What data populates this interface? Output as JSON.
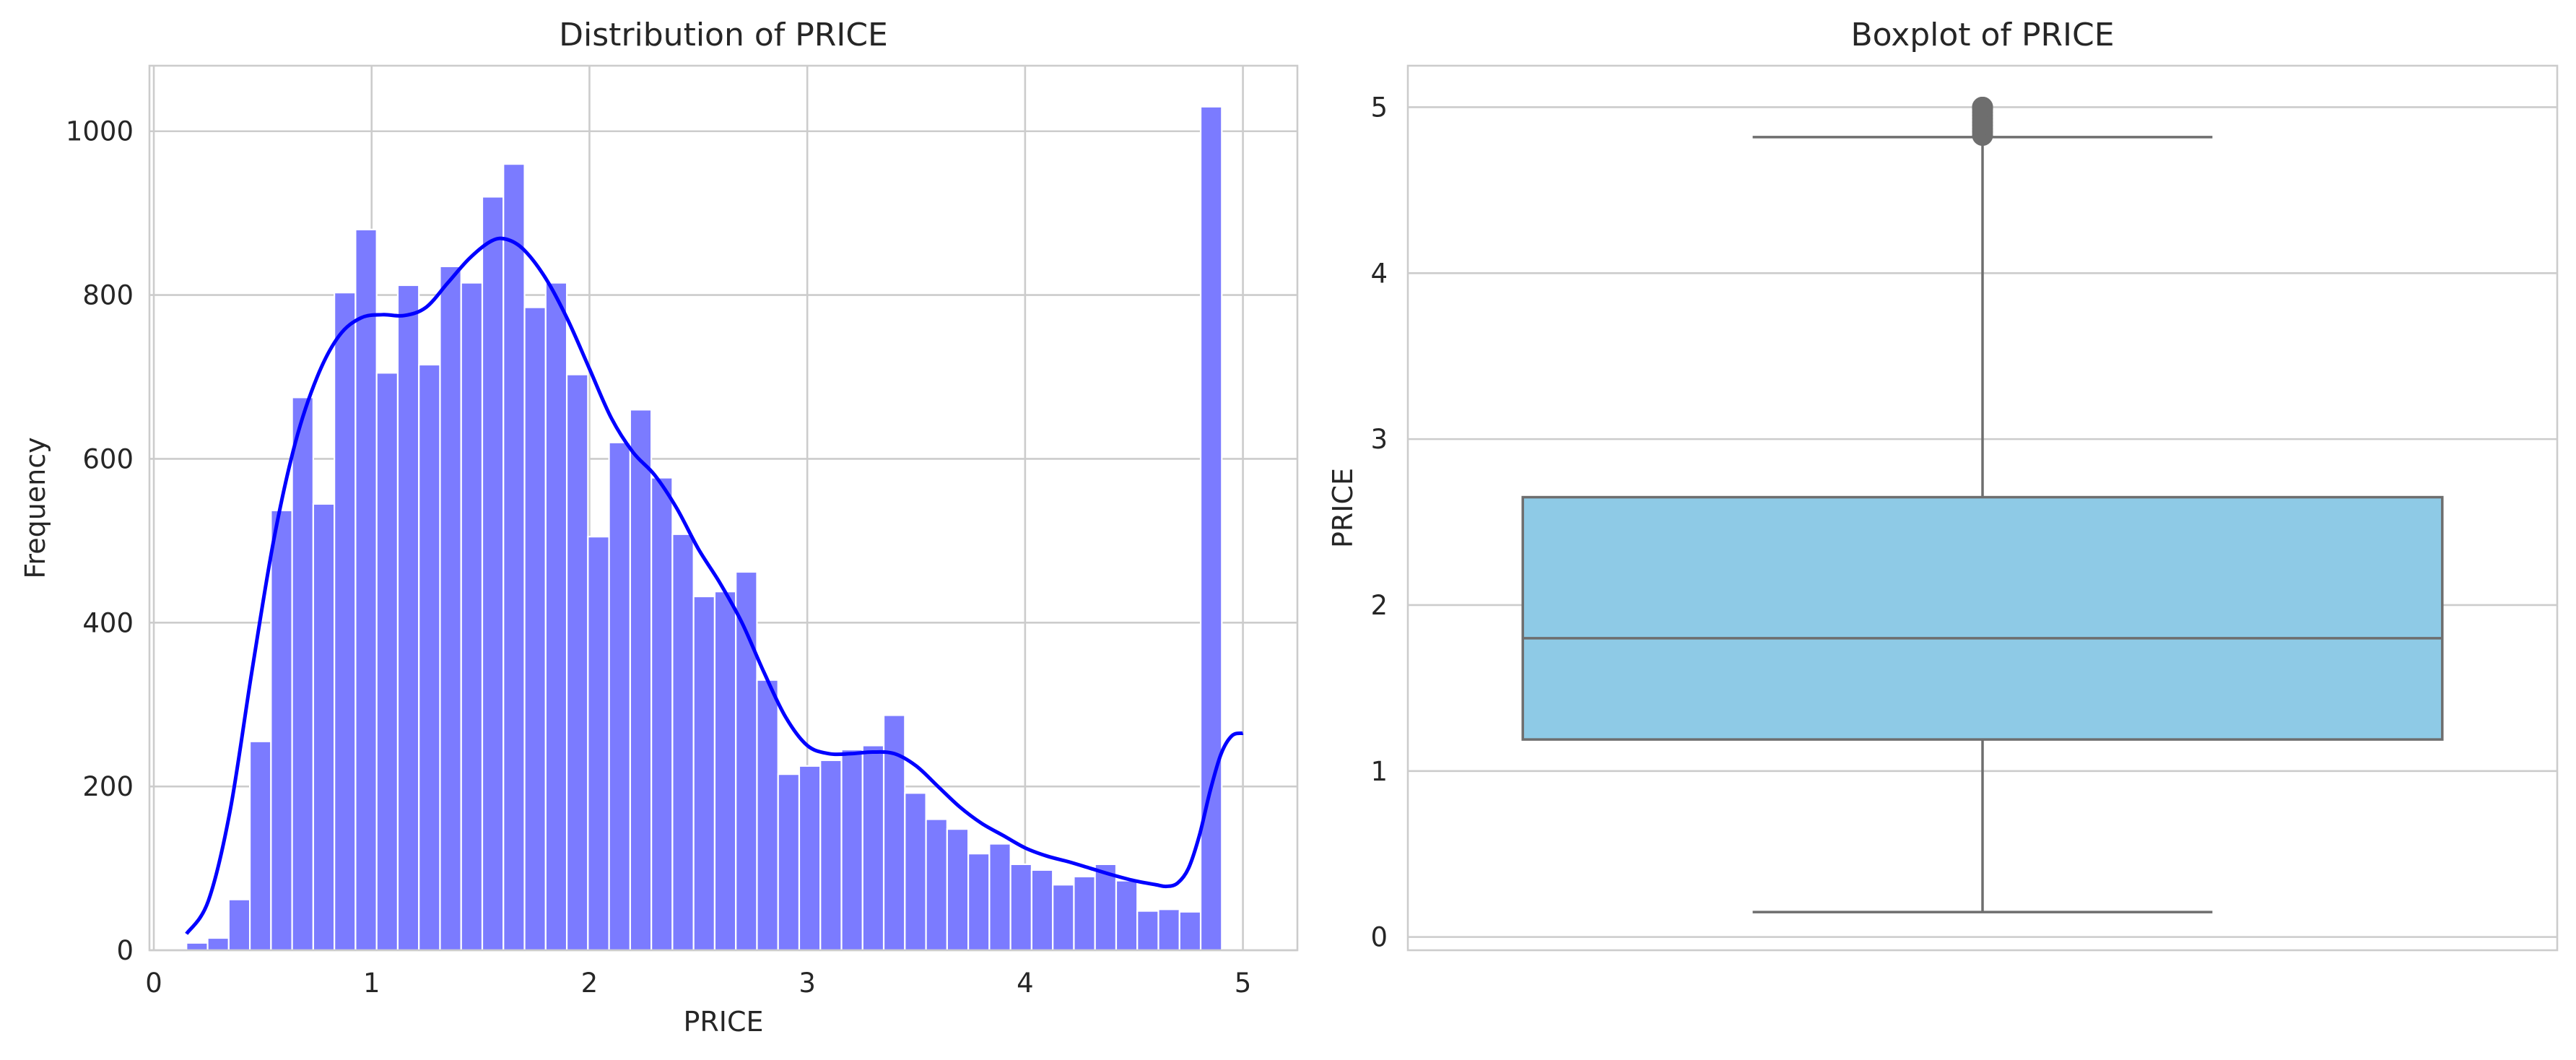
{
  "chart_data": [
    {
      "type": "bar",
      "subtype": "histogram-with-kde",
      "title": "Distribution of PRICE",
      "xlabel": "PRICE",
      "ylabel": "Frequency",
      "xlim": [
        -0.02,
        5.25
      ],
      "ylim": [
        0,
        1080
      ],
      "x_ticks": [
        0,
        1,
        2,
        3,
        4,
        5
      ],
      "y_ticks": [
        0,
        200,
        400,
        600,
        800,
        1000
      ],
      "grid": true,
      "bar_color": "#7b7bff",
      "bar_edge_color": "#ffffff",
      "kde_color": "#0000ff",
      "bins": {
        "start": 0.15,
        "width": 0.097,
        "counts": [
          9,
          15,
          62,
          255,
          537,
          675,
          545,
          803,
          880,
          705,
          812,
          715,
          835,
          815,
          920,
          960,
          785,
          815,
          703,
          505,
          620,
          660,
          577,
          508,
          432,
          438,
          462,
          330,
          215,
          225,
          232,
          245,
          250,
          287,
          192,
          160,
          148,
          118,
          130,
          105,
          98,
          80,
          90,
          105,
          85,
          48,
          50,
          47,
          1030
        ]
      },
      "kde": {
        "x": [
          0.15,
          0.25,
          0.35,
          0.45,
          0.55,
          0.65,
          0.75,
          0.85,
          0.95,
          1.05,
          1.15,
          1.25,
          1.35,
          1.45,
          1.55,
          1.62,
          1.7,
          1.8,
          1.9,
          2.0,
          2.1,
          2.2,
          2.3,
          2.4,
          2.5,
          2.6,
          2.7,
          2.8,
          2.9,
          3.0,
          3.1,
          3.2,
          3.3,
          3.4,
          3.5,
          3.6,
          3.7,
          3.8,
          3.9,
          4.0,
          4.1,
          4.2,
          4.3,
          4.4,
          4.5,
          4.6,
          4.65,
          4.7,
          4.75,
          4.8,
          4.85,
          4.9,
          4.95,
          5.0
        ],
        "y": [
          20,
          60,
          170,
          340,
          500,
          620,
          700,
          750,
          772,
          776,
          775,
          785,
          815,
          845,
          866,
          868,
          855,
          820,
          770,
          710,
          650,
          608,
          580,
          540,
          490,
          448,
          400,
          340,
          285,
          250,
          240,
          240,
          242,
          240,
          225,
          200,
          175,
          155,
          140,
          125,
          115,
          108,
          100,
          92,
          85,
          80,
          78,
          82,
          100,
          140,
          195,
          240,
          262,
          265
        ]
      }
    },
    {
      "type": "box",
      "title": "Boxplot of PRICE",
      "xlabel": "",
      "ylabel": "PRICE",
      "ylim": [
        -0.08,
        5.25
      ],
      "y_ticks": [
        0,
        1,
        2,
        3,
        4,
        5
      ],
      "grid": true,
      "box_color": "#8ecae6",
      "line_color": "#6e6e6e",
      "stats": {
        "whisker_low": 0.15,
        "q1": 1.19,
        "median": 1.8,
        "q3": 2.65,
        "whisker_high": 4.82
      },
      "outliers": [
        4.83,
        4.85,
        4.87,
        4.89,
        4.91,
        4.93,
        4.95,
        4.97,
        4.99,
        5.0,
        5.0,
        5.0
      ]
    }
  ]
}
